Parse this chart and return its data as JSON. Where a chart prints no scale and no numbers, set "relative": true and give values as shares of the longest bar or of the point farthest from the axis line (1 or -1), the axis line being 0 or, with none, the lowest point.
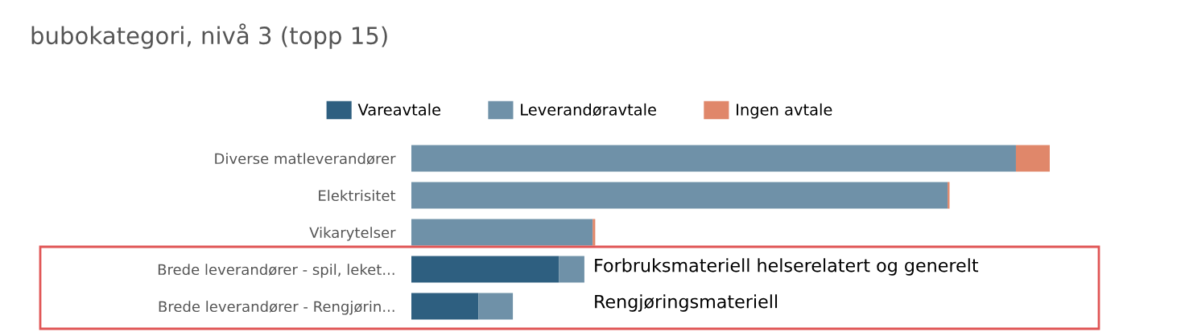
{
  "chart_data": {
    "type": "bar",
    "title": "bubokategori, nivå 3 (topp 15)",
    "orientation": "horizontal",
    "stacked": true,
    "relative": true,
    "legend": "top",
    "categories": [
      "Diverse matleverandører",
      "Elektrisitet",
      "Vikarytelser",
      "Brede leverandører - spil, leket...",
      "Brede leverandører - Rengjørin..."
    ],
    "series": [
      {
        "name": "Vareavtale",
        "color": "#2e5f80",
        "values": [
          0,
          0,
          0,
          0.231,
          0.105
        ]
      },
      {
        "name": "Leverandøravtale",
        "color": "#6f91a8",
        "values": [
          0.947,
          0.84,
          0.284,
          0.04,
          0.054
        ]
      },
      {
        "name": "Ingen avtale",
        "color": "#e0876a",
        "values": [
          0.053,
          0.003,
          0.004,
          0,
          0
        ]
      }
    ],
    "annotations": [
      "Forbruksmateriell helserelatert og generelt",
      "Rengjøringsmateriell"
    ]
  }
}
